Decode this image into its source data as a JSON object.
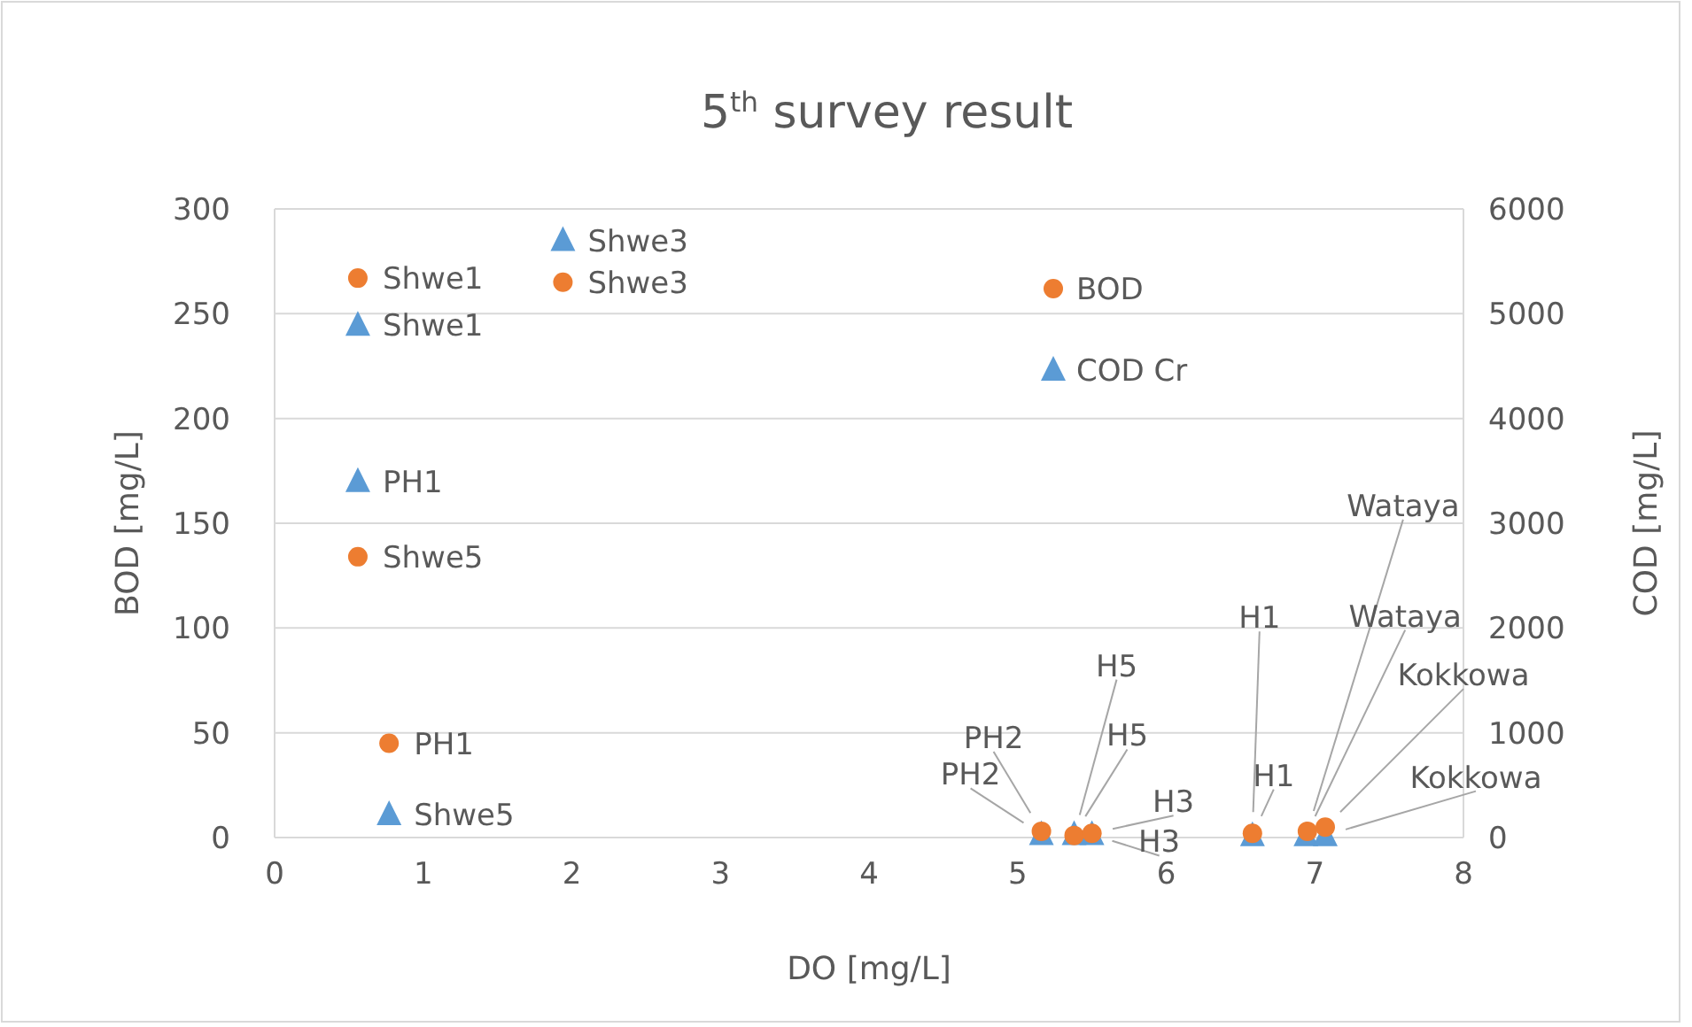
{
  "chart_data": {
    "type": "scatter",
    "title": "5$^{th}$ survey result",
    "xlabel": "DO [mg/L]",
    "ylabel": "BOD [mg/L]",
    "y2label": "COD [mg/L]",
    "xlim": [
      0,
      8
    ],
    "xticks": [
      0,
      1,
      2,
      3,
      4,
      5,
      6,
      7,
      8
    ],
    "ylim": [
      0,
      300
    ],
    "yticks": [
      0,
      50,
      100,
      150,
      200,
      250,
      300
    ],
    "y2lim": [
      0,
      6000
    ],
    "y2ticks": [
      0,
      1000,
      2000,
      3000,
      4000,
      5000,
      6000
    ],
    "grid": "y",
    "legend": "top",
    "series": [
      {
        "name": "BOD",
        "color": "#ed7d31",
        "marker": "circle",
        "x": [
          0.56,
          1.94,
          0.56,
          0.77,
          5.16,
          5.38,
          5.5,
          6.58,
          6.95,
          7.07
        ],
        "values": [
          267,
          265,
          134,
          45,
          3,
          1,
          2,
          2,
          3,
          5
        ],
        "value_labels": [
          "Shwe1",
          "Shwe3",
          "Shwe5",
          "PH1",
          "PH2",
          "H5",
          "H3",
          "H1",
          "Wataya",
          "Kokkowa"
        ]
      },
      {
        "name": "COD Cr",
        "color": "#5b9bd5",
        "marker": "triangle",
        "axis": "y2",
        "x": [
          0.56,
          1.94,
          0.56,
          0.77,
          5.16,
          5.38,
          5.5,
          6.58,
          6.94,
          7.07
        ],
        "values": [
          4890,
          5700,
          3400,
          220,
          30,
          30,
          30,
          20,
          20,
          20
        ],
        "value_labels": [
          "Shwe1",
          "Shwe3",
          "PH1",
          "Shwe5",
          "PH2",
          "H5",
          "H3",
          "H1",
          "Wataya",
          "Kokkowa"
        ]
      }
    ]
  }
}
